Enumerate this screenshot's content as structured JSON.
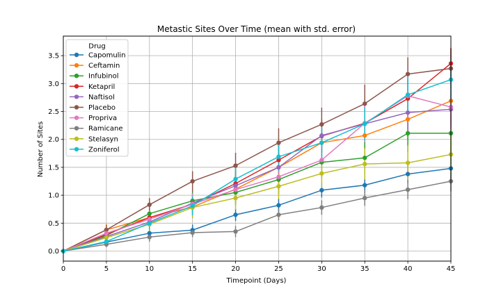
{
  "chart_data": {
    "type": "line",
    "title": "Metastic Sites Over Time (mean with std. error)",
    "xlabel": "Timepoint (Days)",
    "ylabel": "Number of Sites",
    "xlim": [
      0,
      45
    ],
    "ylim": [
      -0.18,
      3.85
    ],
    "x_ticks": [
      "0",
      "5",
      "10",
      "15",
      "20",
      "25",
      "30",
      "35",
      "40",
      "45"
    ],
    "y_ticks": [
      "0.0",
      "0.5",
      "1.0",
      "1.5",
      "2.0",
      "2.5",
      "3.0",
      "3.5"
    ],
    "grid": true,
    "legend_title": "Drug",
    "legend_position": "top-left",
    "x": [
      0,
      5,
      10,
      15,
      20,
      25,
      30,
      35,
      40,
      45
    ],
    "series": [
      {
        "name": "Capomulin",
        "color": "#1f77b4",
        "values": [
          0,
          0.16,
          0.32,
          0.375,
          0.65,
          0.82,
          1.09,
          1.18,
          1.38,
          1.48
        ],
        "err": [
          0,
          0.07,
          0.09,
          0.1,
          0.11,
          0.12,
          0.13,
          0.14,
          0.16,
          0.2
        ]
      },
      {
        "name": "Ceftamin",
        "color": "#ff7f0e",
        "values": [
          0,
          0.38,
          0.6,
          0.79,
          1.11,
          1.5,
          1.94,
          2.07,
          2.36,
          2.69
        ],
        "err": [
          0,
          0.1,
          0.15,
          0.2,
          0.24,
          0.28,
          0.3,
          0.33,
          0.37,
          0.4
        ]
      },
      {
        "name": "Infubinol",
        "color": "#2ca02c",
        "values": [
          0,
          0.28,
          0.67,
          0.9,
          1.05,
          1.28,
          1.59,
          1.67,
          2.11,
          2.11
        ],
        "err": [
          0,
          0.1,
          0.15,
          0.19,
          0.23,
          0.26,
          0.29,
          0.31,
          0.34,
          0.36
        ]
      },
      {
        "name": "Ketapril",
        "color": "#d62728",
        "values": [
          0,
          0.3,
          0.6,
          0.84,
          1.21,
          1.63,
          2.06,
          2.29,
          2.73,
          3.36
        ],
        "err": [
          0,
          0.1,
          0.15,
          0.2,
          0.24,
          0.27,
          0.3,
          0.32,
          0.35,
          0.28
        ]
      },
      {
        "name": "Naftisol",
        "color": "#9467bd",
        "values": [
          0,
          0.26,
          0.52,
          0.86,
          1.17,
          1.5,
          2.07,
          2.28,
          2.48,
          2.54
        ],
        "err": [
          0,
          0.09,
          0.14,
          0.18,
          0.22,
          0.26,
          0.29,
          0.31,
          0.33,
          0.35
        ]
      },
      {
        "name": "Placebo",
        "color": "#8c564b",
        "values": [
          0,
          0.38,
          0.83,
          1.25,
          1.53,
          1.94,
          2.27,
          2.64,
          3.17,
          3.27
        ],
        "err": [
          0,
          0.09,
          0.12,
          0.18,
          0.23,
          0.26,
          0.3,
          0.34,
          0.3,
          0.35
        ]
      },
      {
        "name": "Propriva",
        "color": "#e377c2",
        "values": [
          0,
          0.32,
          0.57,
          0.84,
          1.1,
          1.33,
          1.63,
          2.29,
          2.78,
          2.58
        ],
        "err": [
          0,
          0.1,
          0.15,
          0.19,
          0.22,
          0.26,
          0.3,
          0.34,
          0.38,
          0.4
        ]
      },
      {
        "name": "Ramicane",
        "color": "#7f7f7f",
        "values": [
          0,
          0.12,
          0.25,
          0.33,
          0.35,
          0.65,
          0.78,
          0.95,
          1.1,
          1.25
        ],
        "err": [
          0,
          0.05,
          0.08,
          0.08,
          0.1,
          0.1,
          0.13,
          0.14,
          0.17,
          0.18
        ]
      },
      {
        "name": "Stelasyn",
        "color": "#bcbd22",
        "values": [
          0,
          0.24,
          0.48,
          0.78,
          0.95,
          1.16,
          1.39,
          1.56,
          1.58,
          1.73
        ],
        "err": [
          0,
          0.08,
          0.13,
          0.18,
          0.21,
          0.23,
          0.26,
          0.28,
          0.31,
          0.33
        ]
      },
      {
        "name": "Zoniferol",
        "color": "#17becf",
        "values": [
          0,
          0.17,
          0.5,
          0.81,
          1.29,
          1.69,
          1.94,
          2.28,
          2.8,
          3.07
        ],
        "err": [
          0,
          0.08,
          0.12,
          0.17,
          0.21,
          0.25,
          0.28,
          0.3,
          0.32,
          0.35
        ]
      }
    ]
  }
}
